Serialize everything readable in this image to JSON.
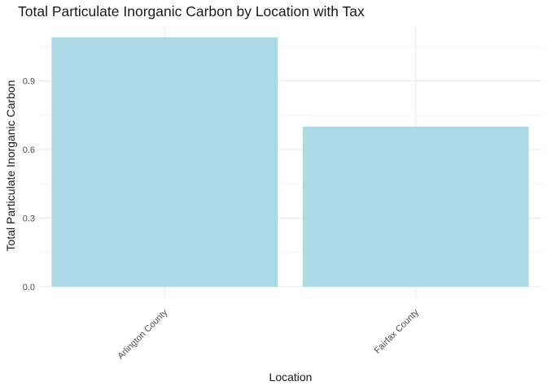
{
  "chart_data": {
    "type": "bar",
    "title": "Total Particulate Inorganic Carbon by Location with Tax",
    "xlabel": "Location",
    "ylabel": "Total Particulate Inorganic Carbon",
    "categories": [
      "Arlington County",
      "Fairfax County"
    ],
    "values": [
      1.09,
      0.7
    ],
    "yticks": [
      "0.0",
      "0.3",
      "0.6",
      "0.9"
    ],
    "ylim": [
      -0.05,
      1.14
    ],
    "grid": true,
    "bar_color": "#ADD8E6",
    "grid_color": "#EBEBEB"
  }
}
